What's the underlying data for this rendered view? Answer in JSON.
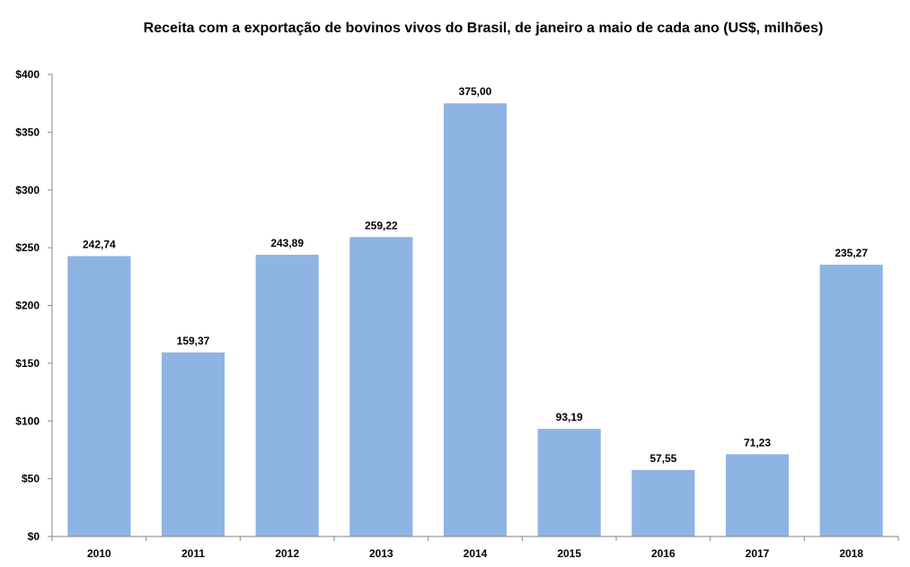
{
  "chart_data": {
    "type": "bar",
    "title": "Receita com a exportação de bovinos vivos do Brasil, de janeiro a maio de cada ano (US$, milhões)",
    "xlabel": "",
    "ylabel": "",
    "categories": [
      "2010",
      "2011",
      "2012",
      "2013",
      "2014",
      "2015",
      "2016",
      "2017",
      "2018"
    ],
    "values": [
      242.74,
      159.37,
      243.89,
      259.22,
      375.0,
      93.19,
      57.55,
      71.23,
      235.27
    ],
    "data_labels": [
      "242,74",
      "159,37",
      "243,89",
      "259,22",
      "375,00",
      "93,19",
      "57,55",
      "71,23",
      "235,27"
    ],
    "ylim": [
      0,
      400
    ],
    "yticks": [
      0,
      50,
      100,
      150,
      200,
      250,
      300,
      350,
      400
    ],
    "ytick_labels": [
      "$0",
      "$50",
      "$100",
      "$150",
      "$200",
      "$250",
      "$300",
      "$350",
      "$400"
    ],
    "grid": false,
    "legend": "none",
    "colors": {
      "bar": "#8EB4E3",
      "axis": "#868686"
    }
  }
}
